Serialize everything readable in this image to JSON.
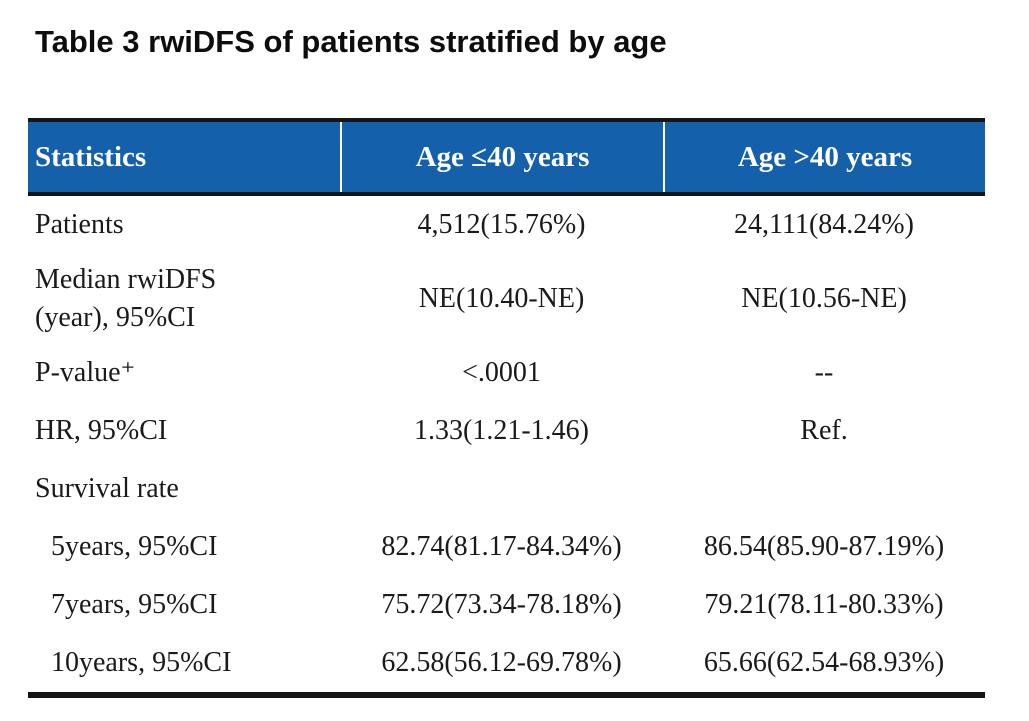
{
  "title": "Table 3 rwiDFS of patients stratified by age",
  "colors": {
    "header_bg": "#1560AB",
    "header_text": "#FFFFFF",
    "border": "#141414",
    "body_text": "#1A1A1A"
  },
  "table": {
    "columns": [
      "Statistics",
      "Age ≤40 years",
      "Age >40 years"
    ],
    "rows": [
      {
        "label": "Patients",
        "values": [
          "4,512(15.76%)",
          "24,111(84.24%)"
        ]
      },
      {
        "label": "Median rwiDFS\n(year), 95%CI",
        "values": [
          "NE(10.40-NE)",
          "NE(10.56-NE)"
        ]
      },
      {
        "label": "P-value⁺",
        "values": [
          "<.0001",
          "--"
        ]
      },
      {
        "label": "HR, 95%CI",
        "values": [
          "1.33(1.21-1.46)",
          "Ref."
        ]
      },
      {
        "label": "Survival rate",
        "values": [
          "",
          ""
        ]
      },
      {
        "label": "5years, 95%CI",
        "values": [
          "82.74(81.17-84.34%)",
          "86.54(85.90-87.19%)"
        ],
        "indent": true
      },
      {
        "label": "7years, 95%CI",
        "values": [
          "75.72(73.34-78.18%)",
          "79.21(78.11-80.33%)"
        ],
        "indent": true
      },
      {
        "label": "10years, 95%CI",
        "values": [
          "62.58(56.12-69.78%)",
          "65.66(62.54-68.93%)"
        ],
        "indent": true
      }
    ]
  }
}
